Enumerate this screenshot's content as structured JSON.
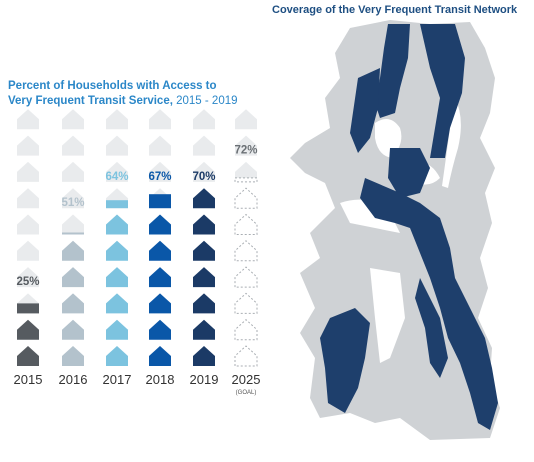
{
  "map": {
    "title": "Coverage of the Very Frequent Transit Network"
  },
  "chart_data": {
    "type": "pictograph",
    "title_line1": "Percent of Households with Access to",
    "title_line2_bold": "Very Frequent Transit Service,",
    "title_line2_rest": " 2015 - 2019",
    "categories": [
      "2015",
      "2016",
      "2017",
      "2018",
      "2019",
      "2025"
    ],
    "category_notes": [
      "",
      "",
      "",
      "",
      "",
      "(GOAL)"
    ],
    "values": [
      25,
      51,
      64,
      67,
      70,
      72
    ],
    "value_labels": [
      "25%",
      "51%",
      "64%",
      "67%",
      "70%",
      "72%"
    ],
    "icons_per_column": 10,
    "colors": {
      "2015": "#565b60",
      "2016": "#b3c2cc",
      "2017": "#7cc3df",
      "2018": "#0a57a8",
      "2019": "#1b3a66",
      "2025": "#cfd3d6",
      "empty": "#e9ebed",
      "water_land": "#cfd2d5",
      "network": "#1e3f6c"
    }
  }
}
